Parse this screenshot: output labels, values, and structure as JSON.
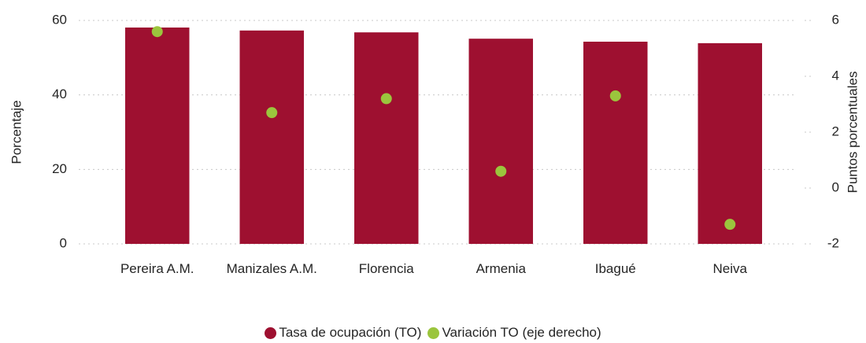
{
  "chart_data": {
    "type": "bar",
    "categories": [
      "Pereira A.M.",
      "Manizales A.M.",
      "Florencia",
      "Armenia",
      "Ibagué",
      "Neiva"
    ],
    "series": [
      {
        "name": "Tasa de ocupación (TO)",
        "color": "#9e1030",
        "type": "bar",
        "values": [
          58.1,
          57.3,
          56.8,
          55.1,
          54.3,
          53.9
        ]
      },
      {
        "name": "Variación TO (eje derecho)",
        "color": "#9bc53d",
        "type": "scatter",
        "axis": "y2",
        "values": [
          5.6,
          2.7,
          3.2,
          0.6,
          3.3,
          -1.3
        ]
      }
    ],
    "ylabel": "Porcentaje",
    "y2label": "Puntos porcentuales",
    "ylim": [
      0,
      60
    ],
    "yticks": [
      0,
      20,
      40,
      60
    ],
    "y2lim": [
      -2,
      6
    ],
    "y2ticks": [
      -2,
      0,
      2,
      4,
      6
    ],
    "grid": true
  }
}
